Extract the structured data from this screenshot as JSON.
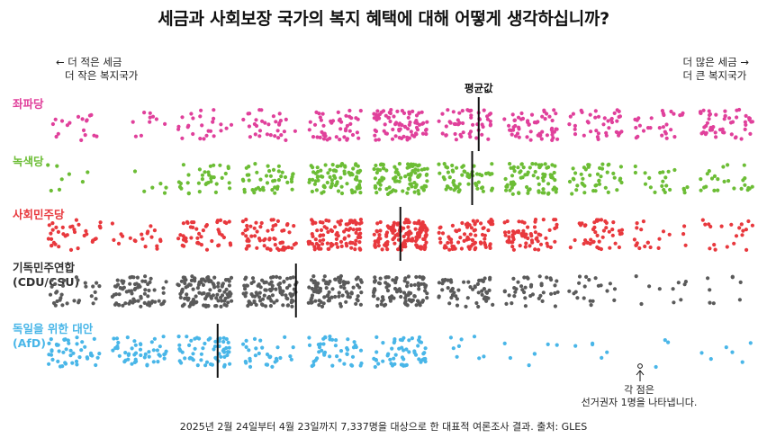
{
  "title": "세금과 사회보장 국가의 복지 혜택에 대해 어떻게 생각하십니까?",
  "scale_left": {
    "line1": "← 더 적은 세금",
    "line2": "더 작은 복지국가"
  },
  "scale_right": {
    "line1": "더 많은 세금 →",
    "line2": "더 큰 복지국가"
  },
  "mean_label": "평균값",
  "note": {
    "line1": "각 점은",
    "line2": "선거권자 1명을 나타냅니다."
  },
  "source": "2025년 2월 24일부터 4월 23일까지 7,337명을 대상으로 한 대표적 여론조사 결과. 출처: GLES",
  "chart_data": {
    "type": "dot-matrix",
    "title": "세금과 사회보장 국가의 복지 혜택에 대해 어떻게 생각하십니까?",
    "scale_points": 11,
    "scale_left": "더 적은 세금 / 더 작은 복지국가",
    "scale_right": "더 많은 세금 / 더 큰 복지국가",
    "unit": "각 점은 선거권자 1명",
    "series": [
      {
        "name": "좌파당",
        "color": "#e0409b",
        "counts": [
          18,
          10,
          25,
          32,
          48,
          78,
          52,
          58,
          40,
          28,
          50
        ],
        "mean": 7.2
      },
      {
        "name": "녹색당",
        "color": "#6cbd35",
        "counts": [
          8,
          6,
          35,
          45,
          82,
          96,
          60,
          75,
          45,
          22,
          25
        ],
        "mean": 7.1
      },
      {
        "name": "사회민주당",
        "color": "#e8383d",
        "counts": [
          35,
          20,
          45,
          62,
          92,
          130,
          80,
          65,
          45,
          20,
          20
        ],
        "mean": 6.0
      },
      {
        "name": "기독민주연합 (CDU/CSU)",
        "color": "#5a5a5a",
        "counts": [
          30,
          72,
          115,
          95,
          90,
          100,
          55,
          40,
          20,
          10,
          8
        ],
        "mean": 4.4
      },
      {
        "name": "독일을 위한 대안 (AfD)",
        "color": "#49b6e8",
        "counts": [
          45,
          48,
          60,
          32,
          45,
          55,
          8,
          7,
          5,
          3,
          6
        ],
        "mean": 3.2
      }
    ]
  },
  "colors": {
    "left": "#e0409b",
    "greens": "#6cbd35",
    "spd": "#e8383d",
    "cdu": "#5a5a5a",
    "afd": "#49b6e8"
  }
}
